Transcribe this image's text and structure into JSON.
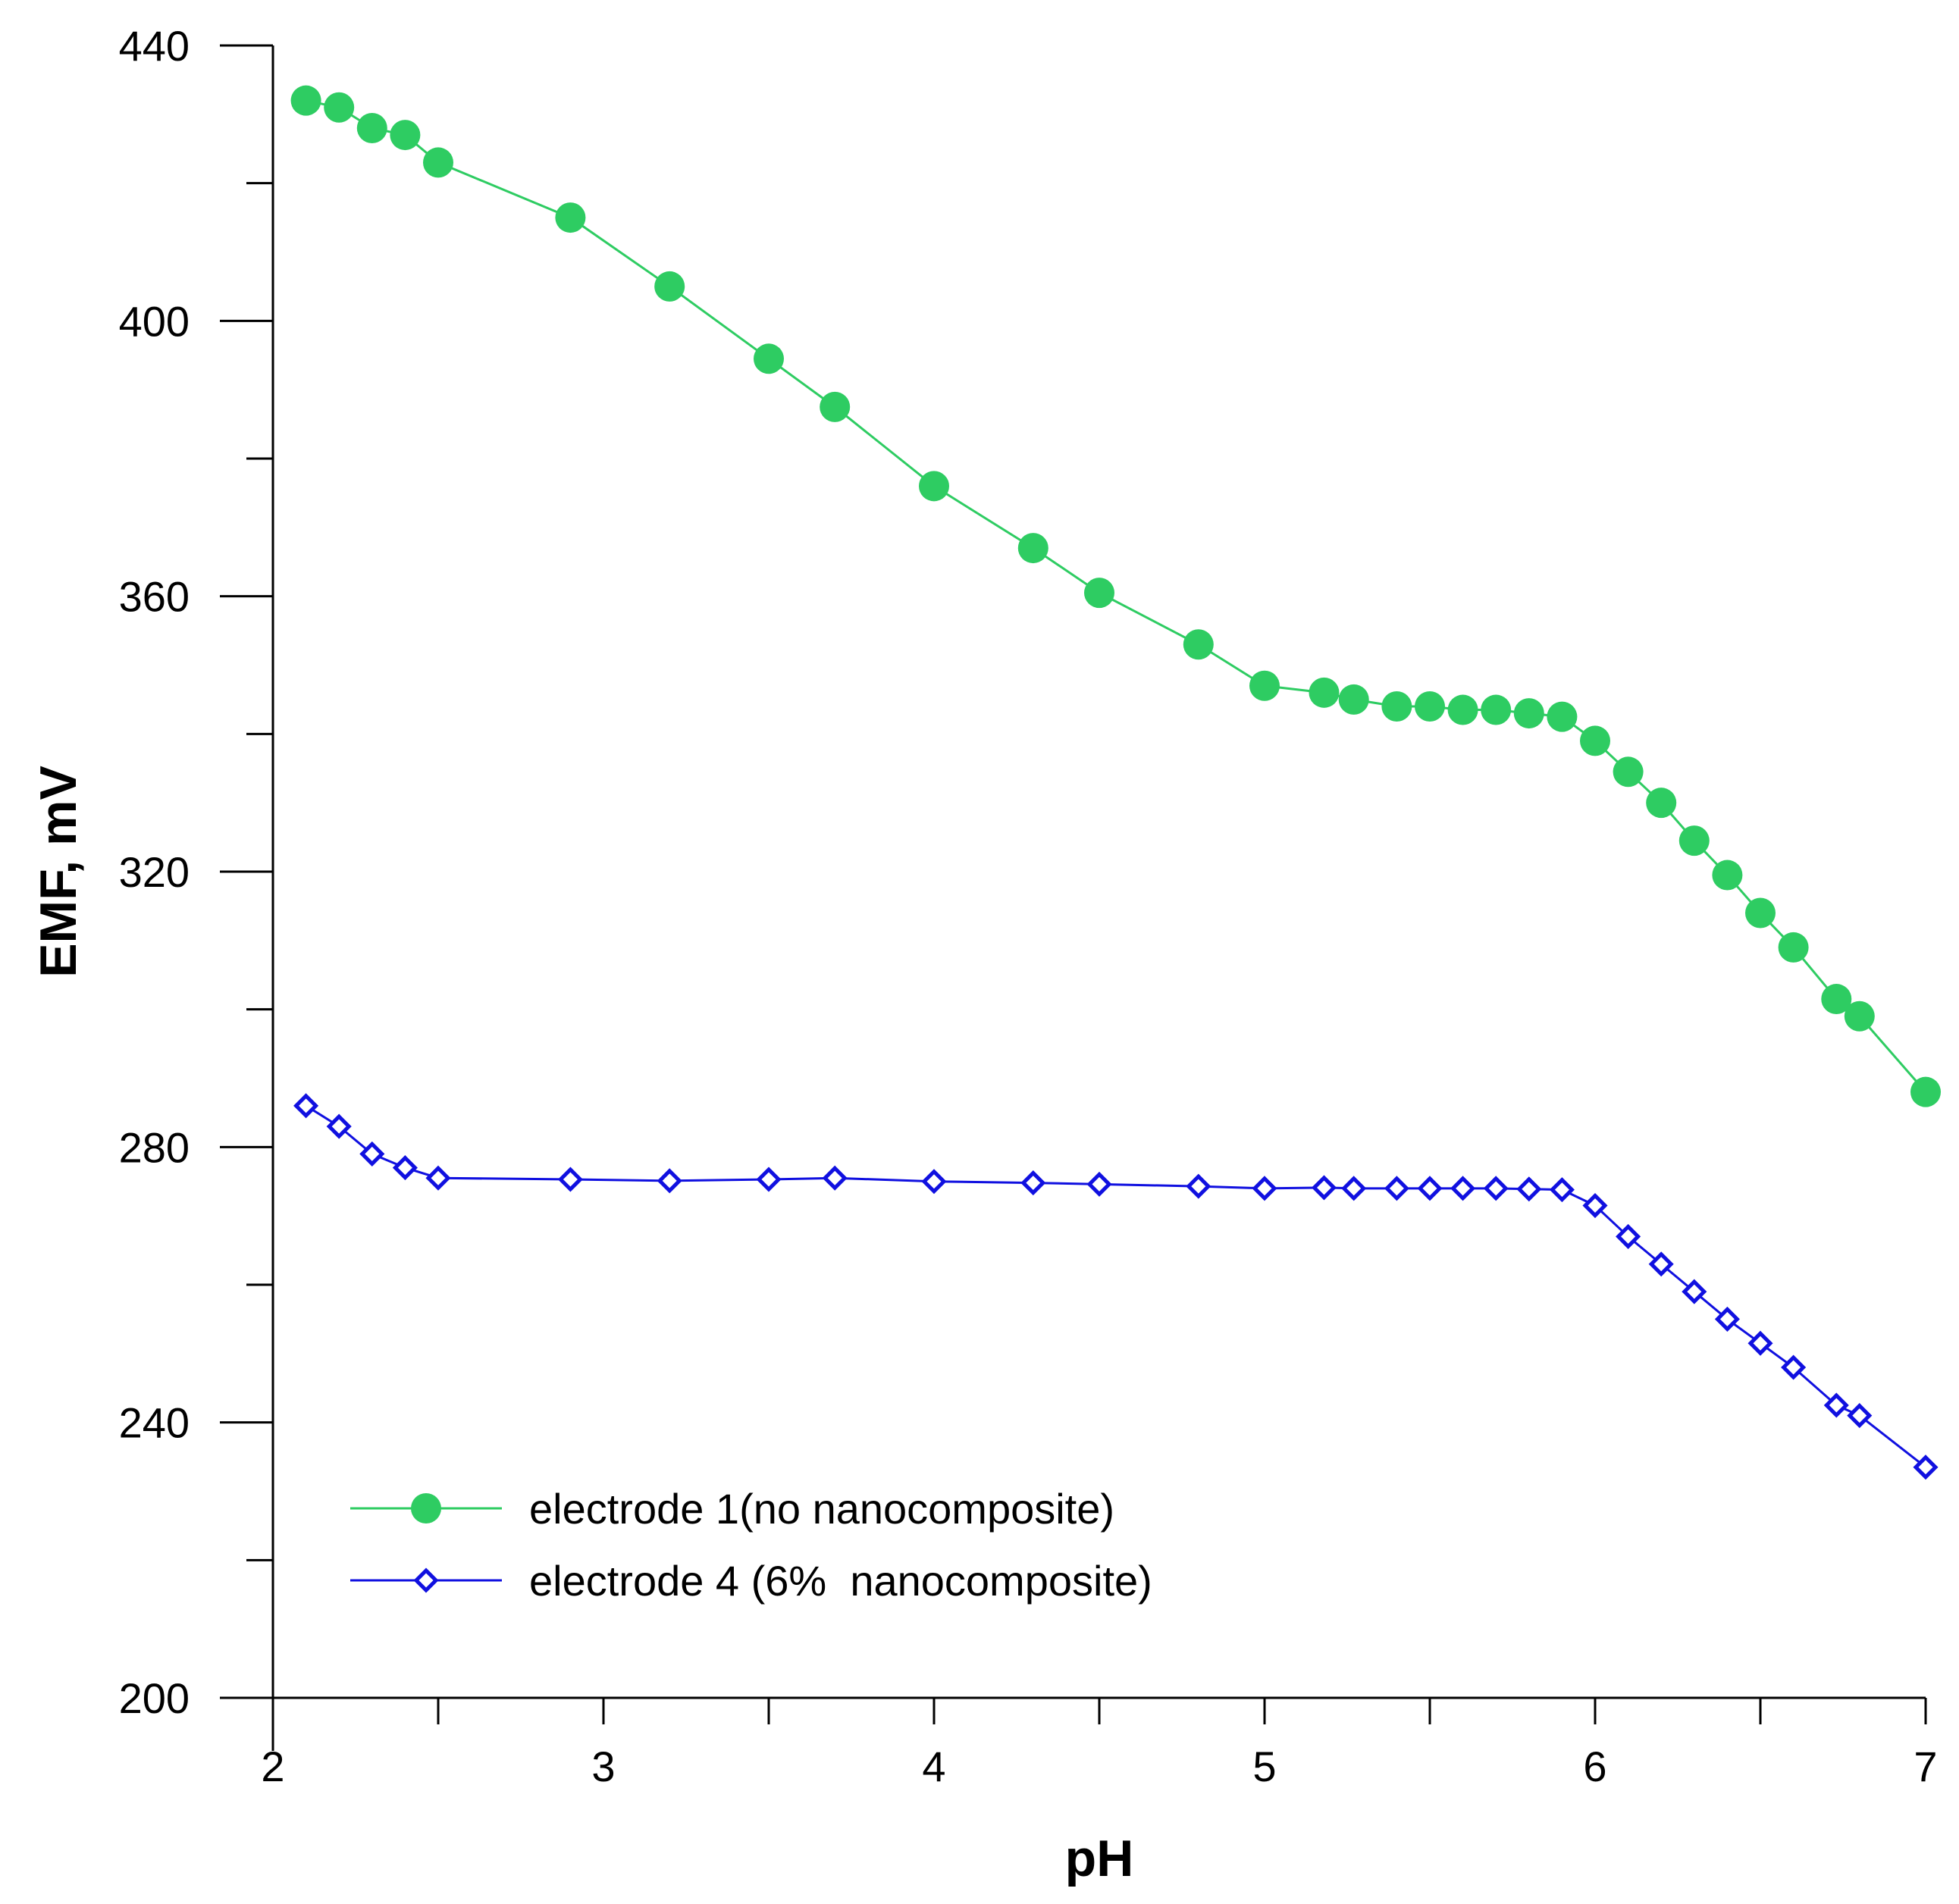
{
  "chart_data": {
    "type": "line",
    "title": "",
    "xlabel": "pH",
    "ylabel": "EMF, mV",
    "xlim": [
      2,
      7
    ],
    "ylim": [
      200,
      440
    ],
    "x_ticks": [
      2,
      3,
      4,
      5,
      6,
      7
    ],
    "x_minor_ticks": [
      2.5,
      3.5,
      4.5,
      5.5,
      6.5
    ],
    "y_ticks": [
      200,
      240,
      280,
      320,
      360,
      400,
      440
    ],
    "y_minor_ticks": [
      220,
      260,
      300,
      340,
      380,
      420
    ],
    "grid": false,
    "legend_position": "bottom-left",
    "series": [
      {
        "name": "electrode 1(no nanocomposite)",
        "color": "#2ecc62",
        "marker": "filled-circle",
        "x": [
          2.1,
          2.2,
          2.3,
          2.4,
          2.5,
          2.9,
          3.2,
          3.5,
          3.7,
          4.0,
          4.3,
          4.5,
          4.8,
          5.0,
          5.18,
          5.27,
          5.4,
          5.5,
          5.6,
          5.7,
          5.8,
          5.9,
          6.0,
          6.1,
          6.2,
          6.3,
          6.4,
          6.5,
          6.6,
          6.73,
          6.8,
          7.0
        ],
        "y": [
          432,
          431,
          428,
          427,
          423,
          415,
          405,
          394.5,
          387.5,
          376,
          367,
          360.5,
          353,
          347,
          346,
          345,
          344,
          344,
          343.5,
          343.5,
          343,
          342.5,
          339,
          334.5,
          330,
          324.5,
          319.5,
          314,
          309,
          301.5,
          299,
          288
        ]
      },
      {
        "name": "electrode 4 (6%  nanocomposite)",
        "color": "#1010e0",
        "marker": "open-diamond",
        "x": [
          2.1,
          2.2,
          2.3,
          2.4,
          2.5,
          2.9,
          3.2,
          3.5,
          3.7,
          4.0,
          4.3,
          4.5,
          4.8,
          5.0,
          5.18,
          5.27,
          5.4,
          5.5,
          5.6,
          5.7,
          5.8,
          5.9,
          6.0,
          6.1,
          6.2,
          6.3,
          6.4,
          6.5,
          6.6,
          6.73,
          6.8,
          7.0
        ],
        "y": [
          286,
          283,
          279,
          277,
          275.5,
          275.3,
          275.1,
          275.3,
          275.5,
          275,
          274.8,
          274.6,
          274.3,
          274,
          274.1,
          274,
          274,
          274,
          274,
          274,
          273.9,
          273.8,
          271.5,
          267,
          263,
          259,
          255,
          251.5,
          248,
          242.5,
          241,
          233.5
        ]
      }
    ]
  }
}
